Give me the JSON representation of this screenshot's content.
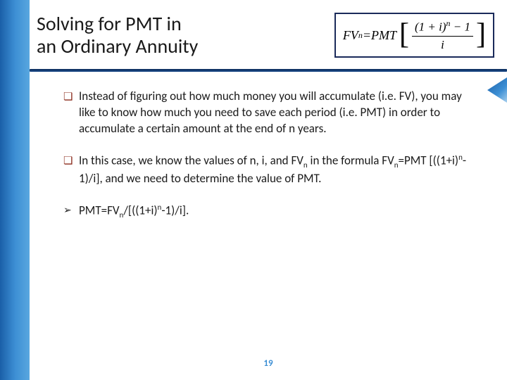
{
  "title_line1": "Solving for PMT in",
  "title_line2": "an Ordinary Annuity",
  "formula": {
    "lhs_base": "FV",
    "lhs_sub": "n",
    "eq": " = ",
    "rhs_lead": "PMT",
    "frac_num_part1": "(1 + ",
    "frac_num_var": "i",
    "frac_num_part2": ")",
    "frac_num_sup": "n",
    "frac_num_tail": " − 1",
    "frac_den": "i"
  },
  "bullets": [
    {
      "marker": "❏",
      "marker_class": "sq-bullet",
      "text": "Instead of figuring out how much money you will accumulate (i.e. FV), you may like to know how much you need to save each period (i.e. PMT) in order to accumulate a certain amount at the end of n years."
    },
    {
      "marker": "❏",
      "marker_class": "sq-bullet",
      "html_parts": {
        "p1": "In this case, we know the values of n, i, and FV",
        "sub1": "n",
        "p2": " in the formula FV",
        "sub2": "n",
        "p3": "=PMT [((1+i)",
        "sup1": "n",
        "p4": "-1)/i], and we need to determine the value of PMT."
      }
    },
    {
      "marker": "➢",
      "marker_class": "arrow-bullet",
      "html_parts": {
        "p1": "PMT=FV",
        "sub1": "n",
        "p2": "/[((1+i)",
        "sup1": "n",
        "p3": "-1)/i]."
      }
    }
  ],
  "page_number": "19",
  "colors": {
    "title": "#1a1a1a",
    "square_bullet": "#8a2a1a",
    "divider": "#0d2d5a",
    "page_num": "#3d8fd4"
  }
}
